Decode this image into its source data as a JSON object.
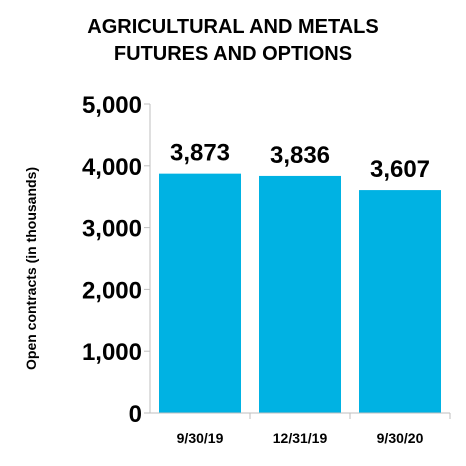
{
  "chart_data": {
    "type": "bar",
    "title": [
      "AGRICULTURAL AND METALS",
      "FUTURES AND OPTIONS"
    ],
    "xlabel": "",
    "ylabel": "Open contracts (in thousands)",
    "categories": [
      "9/30/19",
      "12/31/19",
      "9/30/20"
    ],
    "values": [
      3873,
      3836,
      3607
    ],
    "value_labels": [
      "3,873",
      "3,836",
      "3,607"
    ],
    "ylim": [
      0,
      5000
    ],
    "yticks": [
      0,
      1000,
      2000,
      3000,
      4000,
      5000
    ],
    "ytick_labels": [
      "0",
      "1,000",
      "2,000",
      "3,000",
      "4,000",
      "5,000"
    ],
    "grid": false,
    "legend": "none",
    "bar_color": "#00B2E3",
    "axis_color": "#BFBFBF"
  }
}
